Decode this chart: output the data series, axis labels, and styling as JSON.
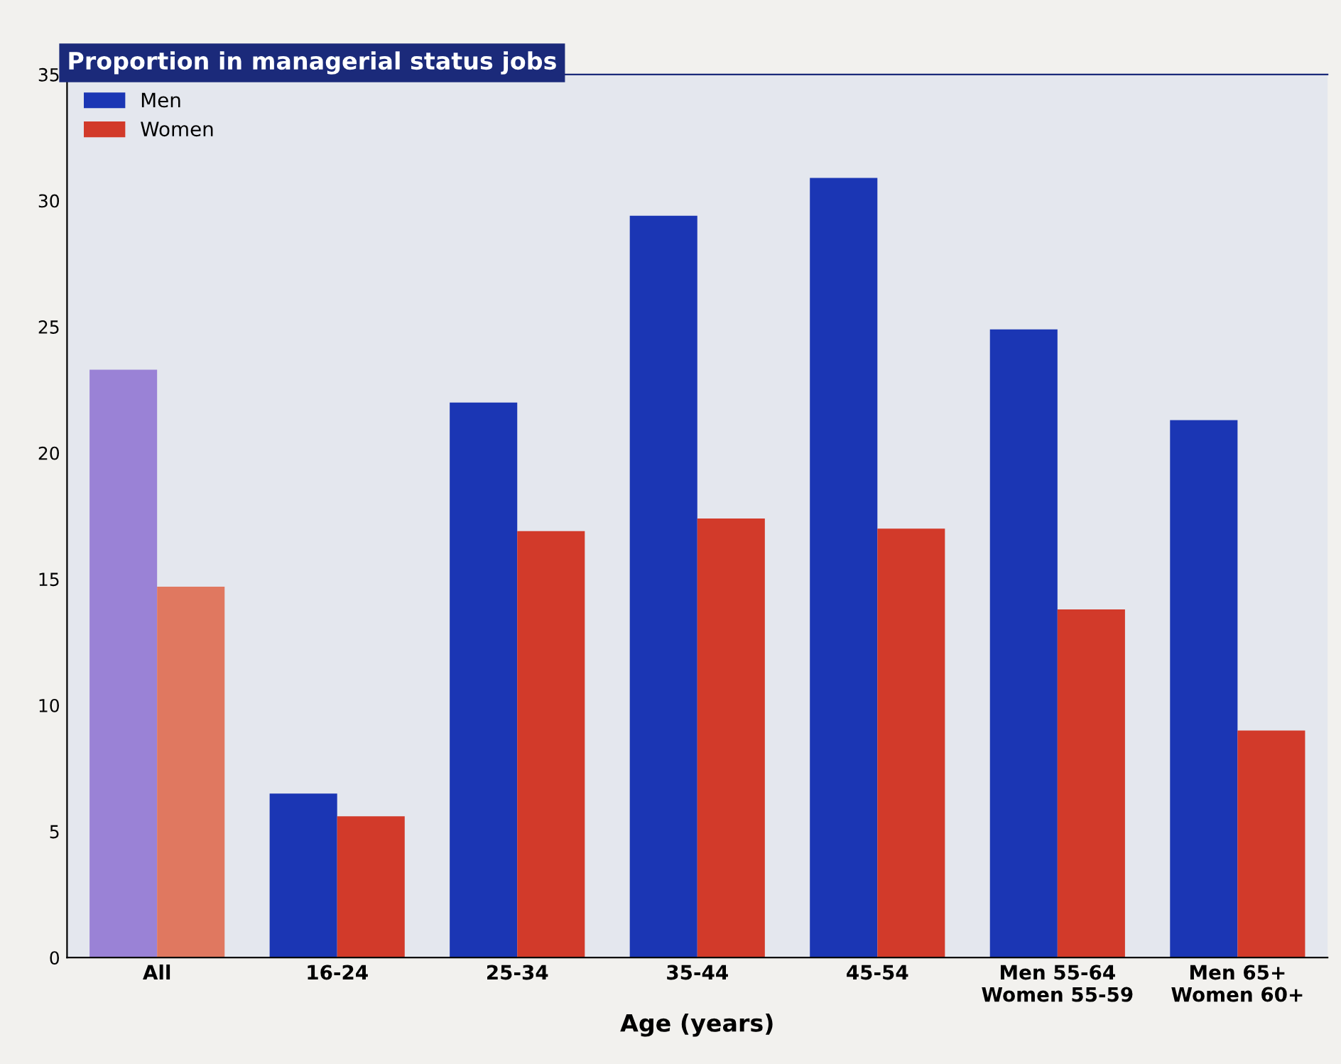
{
  "chart_data": {
    "type": "bar",
    "title": "Proportion in managerial status jobs",
    "xlabel": "Age (years)",
    "categories": [
      "All",
      "16-24",
      "25-34",
      "35-44",
      "45-54",
      "Men 55-64\nWomen 55-59",
      "Men 65+\nWomen 60+"
    ],
    "series": [
      {
        "name": "Men",
        "color": "#1b36b4",
        "colors": [
          "#9a82d6",
          "#1b36b4",
          "#1b36b4",
          "#1b36b4",
          "#1b36b4",
          "#1b36b4",
          "#1b36b4"
        ],
        "values": [
          23.3,
          6.5,
          22.0,
          29.4,
          30.9,
          24.9,
          21.3
        ]
      },
      {
        "name": "Women",
        "color": "#d23a2a",
        "colors": [
          "#e07860",
          "#d23a2a",
          "#d23a2a",
          "#d23a2a",
          "#d23a2a",
          "#d23a2a",
          "#d23a2a"
        ],
        "values": [
          14.7,
          5.6,
          16.9,
          17.4,
          17.0,
          13.8,
          9.0
        ]
      }
    ],
    "ylim": [
      0,
      35
    ],
    "yticks": [
      0,
      5,
      10,
      15,
      20,
      25,
      30,
      35
    ],
    "grid": false,
    "legend": "top left"
  }
}
